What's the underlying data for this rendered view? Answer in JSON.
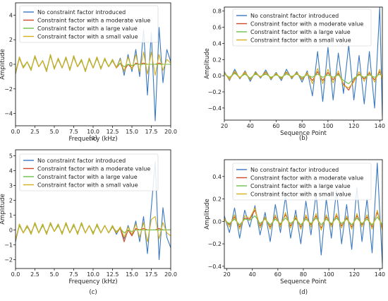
{
  "colors": {
    "no_constraint": "#3a78c0",
    "moderate": "#d0462a",
    "large": "#6cc24a",
    "small": "#d4b01c"
  },
  "legend_labels": [
    "No constraint factor introduced",
    "Constraint factor with a moderate value",
    "Constraint factor with a large value",
    "Constraint factor with a small value"
  ],
  "chart_data": [
    {
      "panel": "(a)",
      "type": "line",
      "xlabel": "Frequency (kHz)",
      "ylabel": "Amplitude",
      "xlim": [
        0,
        20
      ],
      "ylim": [
        -5,
        5
      ],
      "xticks": [
        0.0,
        2.5,
        5.0,
        7.5,
        10.0,
        12.5,
        15.0,
        17.5,
        20.0
      ],
      "xtick_labels": [
        "0.0",
        "2.5",
        "5.0",
        "7.5",
        "10.0",
        "12.5",
        "15.0",
        "17.5",
        "20.0"
      ],
      "yticks": [
        -4,
        -2,
        0,
        2,
        4
      ],
      "ytick_labels": [
        "−4",
        "−2",
        "0",
        "2",
        "4"
      ],
      "grid": false,
      "legend": "top-left",
      "x": [
        0.0,
        0.5,
        1.0,
        1.5,
        2.0,
        2.5,
        3.0,
        3.5,
        4.0,
        4.5,
        5.0,
        5.5,
        6.0,
        6.5,
        7.0,
        7.5,
        8.0,
        8.5,
        9.0,
        9.5,
        10.0,
        10.5,
        11.0,
        11.5,
        12.0,
        12.5,
        13.0,
        13.5,
        14.0,
        14.5,
        15.0,
        15.5,
        16.0,
        16.5,
        17.0,
        17.5,
        18.0,
        18.5,
        19.0,
        19.5,
        20.0
      ],
      "series": [
        {
          "name": "No constraint factor introduced",
          "color_key": "no_constraint",
          "values": [
            -0.8,
            0.6,
            -0.3,
            0.2,
            -0.5,
            0.7,
            -0.2,
            0.3,
            -0.6,
            0.8,
            -0.4,
            0.5,
            -0.3,
            0.6,
            -0.5,
            0.7,
            -0.2,
            0.4,
            -0.6,
            0.5,
            -0.3,
            0.6,
            -0.4,
            0.5,
            -0.2,
            0.4,
            -0.3,
            0.5,
            -0.9,
            0.8,
            -0.6,
            1.2,
            -1.0,
            2.8,
            -2.5,
            2.6,
            -4.6,
            3.0,
            -1.5,
            1.2,
            0.2
          ]
        },
        {
          "name": "Constraint factor with a moderate value",
          "color_key": "moderate",
          "values": [
            -0.7,
            0.5,
            -0.3,
            0.2,
            -0.4,
            0.6,
            -0.2,
            0.3,
            -0.5,
            0.7,
            -0.3,
            0.4,
            -0.3,
            0.5,
            -0.4,
            0.6,
            -0.2,
            0.3,
            -0.5,
            0.4,
            -0.3,
            0.5,
            -0.3,
            0.4,
            -0.2,
            0.3,
            -0.3,
            0.1,
            -0.5,
            0.0,
            -0.3,
            0.1,
            0.0,
            0.1,
            0.0,
            0.0,
            0.0,
            0.1,
            0.0,
            0.0,
            0.0
          ]
        },
        {
          "name": "Constraint factor with a large value",
          "color_key": "large",
          "values": [
            -0.6,
            0.5,
            -0.2,
            0.2,
            -0.4,
            0.6,
            -0.2,
            0.3,
            -0.5,
            0.7,
            -0.3,
            0.4,
            -0.3,
            0.5,
            -0.4,
            0.6,
            -0.2,
            0.3,
            -0.5,
            0.4,
            -0.3,
            0.5,
            -0.3,
            0.4,
            -0.2,
            0.3,
            -0.2,
            0.1,
            -0.2,
            0.0,
            -0.1,
            0.0,
            0.0,
            0.0,
            0.0,
            0.0,
            0.0,
            0.0,
            0.0,
            0.0,
            0.0
          ]
        },
        {
          "name": "Constraint factor with a small value",
          "color_key": "small",
          "values": [
            -0.7,
            0.6,
            -0.3,
            0.2,
            -0.5,
            0.7,
            -0.2,
            0.3,
            -0.6,
            0.8,
            -0.4,
            0.5,
            -0.3,
            0.6,
            -0.5,
            0.7,
            -0.2,
            0.4,
            -0.6,
            0.5,
            -0.3,
            0.6,
            -0.4,
            0.5,
            -0.2,
            0.4,
            -0.3,
            0.4,
            -0.6,
            0.6,
            -0.4,
            0.8,
            -0.6,
            1.0,
            -0.8,
            1.0,
            -0.9,
            0.8,
            -0.5,
            0.4,
            0.1
          ]
        }
      ]
    },
    {
      "panel": "(b)",
      "type": "line",
      "xlabel": "Sequence Point",
      "ylabel": "Amplitude",
      "xlim": [
        20,
        142
      ],
      "ylim": [
        -0.55,
        0.85
      ],
      "xticks": [
        20,
        40,
        60,
        80,
        100,
        120,
        140
      ],
      "xtick_labels": [
        "20",
        "40",
        "60",
        "80",
        "100",
        "120",
        "140"
      ],
      "yticks": [
        -0.4,
        -0.2,
        0.0,
        0.2,
        0.4,
        0.6,
        0.8
      ],
      "ytick_labels": [
        "−0.4",
        "−0.2",
        "0.0",
        "0.2",
        "0.4",
        "0.6",
        "0.8"
      ],
      "grid": false,
      "legend": "top-center",
      "x": [
        20,
        24,
        28,
        32,
        36,
        40,
        44,
        48,
        52,
        56,
        60,
        64,
        68,
        72,
        76,
        80,
        84,
        88,
        92,
        96,
        100,
        104,
        108,
        112,
        116,
        120,
        124,
        128,
        132,
        136,
        140,
        142
      ],
      "series": [
        {
          "name": "No constraint factor introduced",
          "color_key": "no_constraint",
          "values": [
            0.05,
            -0.06,
            0.08,
            -0.04,
            0.06,
            -0.07,
            0.05,
            -0.03,
            0.07,
            -0.05,
            0.04,
            -0.06,
            0.08,
            -0.04,
            0.05,
            -0.08,
            0.06,
            -0.25,
            0.3,
            -0.32,
            0.35,
            -0.3,
            0.28,
            -0.22,
            0.38,
            -0.3,
            0.25,
            -0.35,
            0.3,
            -0.4,
            0.85,
            -0.5
          ]
        },
        {
          "name": "Constraint factor with a moderate value",
          "color_key": "moderate",
          "values": [
            0.03,
            -0.04,
            0.04,
            -0.03,
            0.04,
            -0.04,
            0.03,
            -0.02,
            0.04,
            -0.03,
            0.02,
            -0.03,
            0.04,
            -0.02,
            0.03,
            -0.04,
            0.03,
            -0.06,
            0.05,
            -0.06,
            0.04,
            -0.05,
            0.03,
            -0.1,
            -0.18,
            -0.05,
            0.02,
            -0.04,
            0.03,
            -0.05,
            0.05,
            -0.03
          ]
        },
        {
          "name": "Constraint factor with a large value",
          "color_key": "large",
          "values": [
            0.02,
            -0.02,
            0.03,
            -0.02,
            0.02,
            -0.03,
            0.02,
            -0.01,
            0.02,
            -0.02,
            0.01,
            -0.02,
            0.02,
            -0.01,
            0.02,
            -0.02,
            0.01,
            -0.02,
            0.02,
            -0.02,
            0.01,
            -0.02,
            0.01,
            -0.06,
            -0.1,
            -0.03,
            0.01,
            -0.02,
            0.01,
            -0.02,
            0.02,
            -0.01
          ]
        },
        {
          "name": "Constraint factor with a small value",
          "color_key": "small",
          "values": [
            0.04,
            -0.05,
            0.06,
            -0.03,
            0.05,
            -0.05,
            0.04,
            -0.02,
            0.05,
            -0.04,
            0.03,
            -0.04,
            0.05,
            -0.03,
            0.04,
            -0.05,
            0.04,
            -0.1,
            0.09,
            -0.1,
            0.08,
            -0.09,
            0.06,
            -0.12,
            -0.15,
            -0.08,
            0.05,
            -0.07,
            0.05,
            -0.08,
            0.08,
            -0.05
          ]
        }
      ]
    },
    {
      "panel": "(c)",
      "type": "line",
      "xlabel": "Frequency (kHz)",
      "ylabel": "Amplitude",
      "xlim": [
        0,
        20
      ],
      "ylim": [
        -2.6,
        5.4
      ],
      "xticks": [
        0.0,
        2.5,
        5.0,
        7.5,
        10.0,
        12.5,
        15.0,
        17.5,
        20.0
      ],
      "xtick_labels": [
        "0.0",
        "2.5",
        "5.0",
        "7.5",
        "10.0",
        "12.5",
        "15.0",
        "17.5",
        "20.0"
      ],
      "yticks": [
        -2,
        -1,
        0,
        1,
        2,
        3,
        4,
        5
      ],
      "ytick_labels": [
        "−2",
        "−1",
        "0",
        "1",
        "2",
        "3",
        "4",
        "5"
      ],
      "grid": false,
      "legend": "top-left",
      "x": [
        0.0,
        0.5,
        1.0,
        1.5,
        2.0,
        2.5,
        3.0,
        3.5,
        4.0,
        4.5,
        5.0,
        5.5,
        6.0,
        6.5,
        7.0,
        7.5,
        8.0,
        8.5,
        9.0,
        9.5,
        10.0,
        10.5,
        11.0,
        11.5,
        12.0,
        12.5,
        13.0,
        13.5,
        14.0,
        14.5,
        15.0,
        15.5,
        16.0,
        16.5,
        17.0,
        17.5,
        18.0,
        18.5,
        19.0,
        19.5,
        20.0
      ],
      "series": [
        {
          "name": "No constraint factor introduced",
          "color_key": "no_constraint",
          "values": [
            -0.8,
            0.4,
            -0.2,
            0.3,
            -0.3,
            0.5,
            -0.2,
            0.4,
            -0.3,
            0.5,
            -0.1,
            0.4,
            -0.3,
            0.5,
            -0.2,
            0.4,
            -0.3,
            0.5,
            -0.2,
            0.3,
            -0.3,
            0.4,
            -0.2,
            0.3,
            -0.2,
            0.3,
            -0.3,
            0.2,
            -0.6,
            0.3,
            -0.4,
            0.6,
            -0.8,
            0.9,
            -1.6,
            1.5,
            4.6,
            -2.0,
            1.5,
            -0.5,
            -1.2
          ]
        },
        {
          "name": "Constraint factor with a moderate value",
          "color_key": "moderate",
          "values": [
            -0.7,
            0.3,
            -0.2,
            0.3,
            -0.2,
            0.4,
            -0.2,
            0.3,
            -0.2,
            0.4,
            -0.1,
            0.3,
            -0.2,
            0.4,
            -0.2,
            0.3,
            -0.2,
            0.4,
            -0.2,
            0.3,
            -0.2,
            0.3,
            -0.2,
            0.3,
            -0.2,
            0.2,
            -0.2,
            0.1,
            -0.8,
            0.0,
            -0.4,
            0.1,
            0.0,
            0.1,
            0.0,
            0.0,
            0.0,
            0.1,
            0.0,
            0.0,
            0.0
          ]
        },
        {
          "name": "Constraint factor with a large value",
          "color_key": "large",
          "values": [
            -0.6,
            0.3,
            -0.2,
            0.2,
            -0.2,
            0.4,
            -0.2,
            0.3,
            -0.2,
            0.4,
            -0.1,
            0.3,
            -0.2,
            0.4,
            -0.2,
            0.3,
            -0.2,
            0.4,
            -0.2,
            0.3,
            -0.2,
            0.3,
            -0.2,
            0.3,
            -0.2,
            0.2,
            -0.1,
            0.1,
            -0.2,
            0.0,
            -0.1,
            0.0,
            0.0,
            0.0,
            0.0,
            0.0,
            0.0,
            0.0,
            0.0,
            0.0,
            0.0
          ]
        },
        {
          "name": "Constraint factor with a small value",
          "color_key": "small",
          "values": [
            -0.7,
            0.4,
            -0.2,
            0.3,
            -0.3,
            0.5,
            -0.2,
            0.4,
            -0.3,
            0.5,
            -0.1,
            0.4,
            -0.3,
            0.5,
            -0.2,
            0.4,
            -0.3,
            0.5,
            -0.2,
            0.3,
            -0.3,
            0.4,
            -0.2,
            0.3,
            -0.2,
            0.3,
            -0.2,
            0.2,
            -0.5,
            0.2,
            -0.3,
            0.4,
            -0.5,
            0.5,
            -0.8,
            0.7,
            0.9,
            -0.6,
            0.5,
            -0.2,
            -0.4
          ]
        }
      ]
    },
    {
      "panel": "(d)",
      "type": "line",
      "xlabel": "Sequence Point",
      "ylabel": "Amplitude",
      "xlim": [
        18,
        142
      ],
      "ylim": [
        -0.42,
        0.55
      ],
      "xticks": [
        20,
        40,
        60,
        80,
        100,
        120,
        140
      ],
      "xtick_labels": [
        "20",
        "40",
        "60",
        "80",
        "100",
        "120",
        "140"
      ],
      "yticks": [
        -0.4,
        -0.2,
        0.0,
        0.2,
        0.4
      ],
      "ytick_labels": [
        "−0.4",
        "−0.2",
        "0.0",
        "0.2",
        "0.4"
      ],
      "grid": false,
      "legend": "top-center",
      "x": [
        18,
        22,
        26,
        30,
        34,
        38,
        42,
        46,
        50,
        54,
        58,
        62,
        66,
        70,
        74,
        78,
        82,
        86,
        90,
        94,
        98,
        102,
        106,
        110,
        114,
        118,
        122,
        126,
        130,
        134,
        138,
        142
      ],
      "series": [
        {
          "name": "No constraint factor introduced",
          "color_key": "no_constraint",
          "values": [
            0.05,
            -0.1,
            0.12,
            -0.15,
            0.1,
            -0.05,
            0.14,
            -0.12,
            0.08,
            -0.18,
            0.15,
            -0.1,
            0.22,
            -0.15,
            0.1,
            -0.2,
            0.18,
            -0.12,
            0.25,
            -0.3,
            0.2,
            -0.15,
            0.28,
            -0.2,
            0.15,
            -0.25,
            0.3,
            -0.18,
            0.2,
            -0.28,
            0.52,
            -0.38
          ]
        },
        {
          "name": "Constraint factor with a moderate value",
          "color_key": "moderate",
          "values": [
            0.02,
            -0.03,
            0.04,
            -0.05,
            0.03,
            0.02,
            0.1,
            -0.04,
            0.03,
            -0.05,
            0.04,
            -0.03,
            0.06,
            -0.04,
            0.03,
            -0.05,
            0.04,
            -0.03,
            0.05,
            -0.06,
            0.04,
            -0.03,
            0.05,
            -0.04,
            0.03,
            -0.05,
            0.05,
            -0.03,
            0.04,
            -0.05,
            0.08,
            -0.06
          ]
        },
        {
          "name": "Constraint factor with a large value",
          "color_key": "large",
          "values": [
            0.01,
            -0.02,
            0.02,
            -0.03,
            0.02,
            0.01,
            0.05,
            -0.02,
            0.02,
            -0.03,
            0.02,
            -0.02,
            0.03,
            -0.02,
            0.02,
            -0.03,
            0.02,
            -0.02,
            0.03,
            -0.03,
            0.02,
            -0.02,
            0.03,
            -0.02,
            0.02,
            -0.03,
            0.03,
            -0.02,
            0.02,
            -0.03,
            0.04,
            -0.03
          ]
        },
        {
          "name": "Constraint factor with a small value",
          "color_key": "small",
          "values": [
            0.03,
            -0.05,
            0.06,
            -0.07,
            0.05,
            0.03,
            0.12,
            -0.06,
            0.04,
            -0.07,
            0.06,
            -0.05,
            0.08,
            -0.06,
            0.05,
            -0.07,
            0.06,
            -0.05,
            0.07,
            -0.08,
            0.06,
            -0.05,
            0.07,
            -0.06,
            0.05,
            -0.07,
            0.07,
            -0.05,
            0.06,
            -0.07,
            0.1,
            -0.08
          ]
        }
      ]
    }
  ]
}
